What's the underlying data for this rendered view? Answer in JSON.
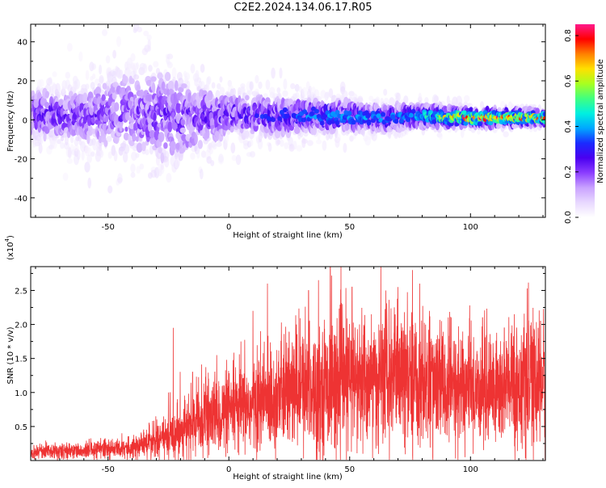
{
  "title": "C2E2.2024.134.06.17.R05",
  "colors": {
    "spectrogram_palette": [
      "#ffffff",
      "#e8d8ff",
      "#c9a2ff",
      "#8b3dff",
      "#4a00f0",
      "#1a2bff",
      "#00a8ff",
      "#00f0e0",
      "#40ff80",
      "#a8ff20",
      "#ffe000",
      "#ff8000",
      "#ff0000",
      "#ff1a8c"
    ],
    "snr_line": "#ee3333"
  },
  "chart_data": [
    {
      "type": "heatmap",
      "description_series": "spectrogram",
      "xlabel": "Height of straight line (km)",
      "ylabel": "Frequency (Hz)",
      "xlim": [
        -82,
        131
      ],
      "ylim": [
        -50,
        49
      ],
      "xticks": [
        -50,
        0,
        50,
        100
      ],
      "yticks": [
        -40,
        -20,
        0,
        20,
        40
      ],
      "colorbar": {
        "label": "Normalized spectral amplitude",
        "range": [
          0.0,
          0.85
        ],
        "ticks": [
          0.0,
          0.2,
          0.4,
          0.6,
          0.8
        ]
      },
      "center_frequency_trend": [
        [
          -80,
          3
        ],
        [
          -60,
          2
        ],
        [
          -40,
          4
        ],
        [
          -20,
          0
        ],
        [
          0,
          3
        ],
        [
          20,
          2
        ],
        [
          40,
          2
        ],
        [
          60,
          1
        ],
        [
          80,
          2
        ],
        [
          100,
          1
        ],
        [
          130,
          1
        ]
      ],
      "frequency_spread_hz": [
        [
          -80,
          22
        ],
        [
          -60,
          25
        ],
        [
          -45,
          40
        ],
        [
          -25,
          45
        ],
        [
          0,
          20
        ],
        [
          40,
          15
        ],
        [
          80,
          10
        ],
        [
          100,
          7
        ],
        [
          130,
          6
        ]
      ],
      "peak_amplitude": [
        [
          -80,
          0.25
        ],
        [
          -40,
          0.2
        ],
        [
          0,
          0.25
        ],
        [
          40,
          0.35
        ],
        [
          75,
          0.35
        ],
        [
          85,
          0.5
        ],
        [
          100,
          0.75
        ],
        [
          130,
          0.7
        ]
      ]
    },
    {
      "type": "line",
      "xlabel": "Height of straight line (km)",
      "ylabel": "SNR (10 * v/v)",
      "exponent_label": "(x10",
      "exponent_sup": "4",
      "exponent_close": ")",
      "xlim": [
        -82,
        131
      ],
      "ylim": [
        0,
        2.85
      ],
      "xticks": [
        -50,
        0,
        50,
        100
      ],
      "yticks": [
        0.5,
        1.0,
        1.5,
        2.0,
        2.5
      ],
      "series": [
        {
          "baseline": [
            [
              -82,
              0.12
            ],
            [
              -60,
              0.15
            ],
            [
              -40,
              0.2
            ],
            [
              -30,
              0.3
            ],
            [
              -20,
              0.45
            ],
            [
              -10,
              0.6
            ],
            [
              0,
              0.7
            ],
            [
              10,
              0.8
            ],
            [
              20,
              0.95
            ],
            [
              30,
              1.05
            ],
            [
              40,
              1.1
            ],
            [
              50,
              1.15
            ],
            [
              60,
              1.15
            ],
            [
              70,
              1.2
            ],
            [
              80,
              1.15
            ],
            [
              90,
              1.05
            ],
            [
              100,
              1.05
            ],
            [
              110,
              1.05
            ],
            [
              120,
              1.1
            ],
            [
              131,
              1.15
            ]
          ],
          "peaks": [
            [
              -79,
              0.2
            ],
            [
              -55,
              0.25
            ],
            [
              -33,
              0.55
            ],
            [
              -25,
              1.0
            ],
            [
              -23,
              1.95
            ],
            [
              -15,
              1.3
            ],
            [
              -5,
              1.55
            ],
            [
              5,
              1.75
            ],
            [
              10,
              2.2
            ],
            [
              16,
              2.6
            ],
            [
              28,
              2.0
            ],
            [
              33,
              2.5
            ],
            [
              42,
              2.85
            ],
            [
              47,
              2.3
            ],
            [
              51,
              2.55
            ],
            [
              59,
              2.15
            ],
            [
              65,
              2.5
            ],
            [
              70,
              2.55
            ],
            [
              76,
              2.8
            ],
            [
              79,
              2.6
            ],
            [
              83,
              2.2
            ],
            [
              88,
              2.05
            ],
            [
              92,
              2.1
            ],
            [
              105,
              2.1
            ],
            [
              114,
              1.95
            ],
            [
              129,
              2.05
            ]
          ]
        }
      ]
    }
  ]
}
